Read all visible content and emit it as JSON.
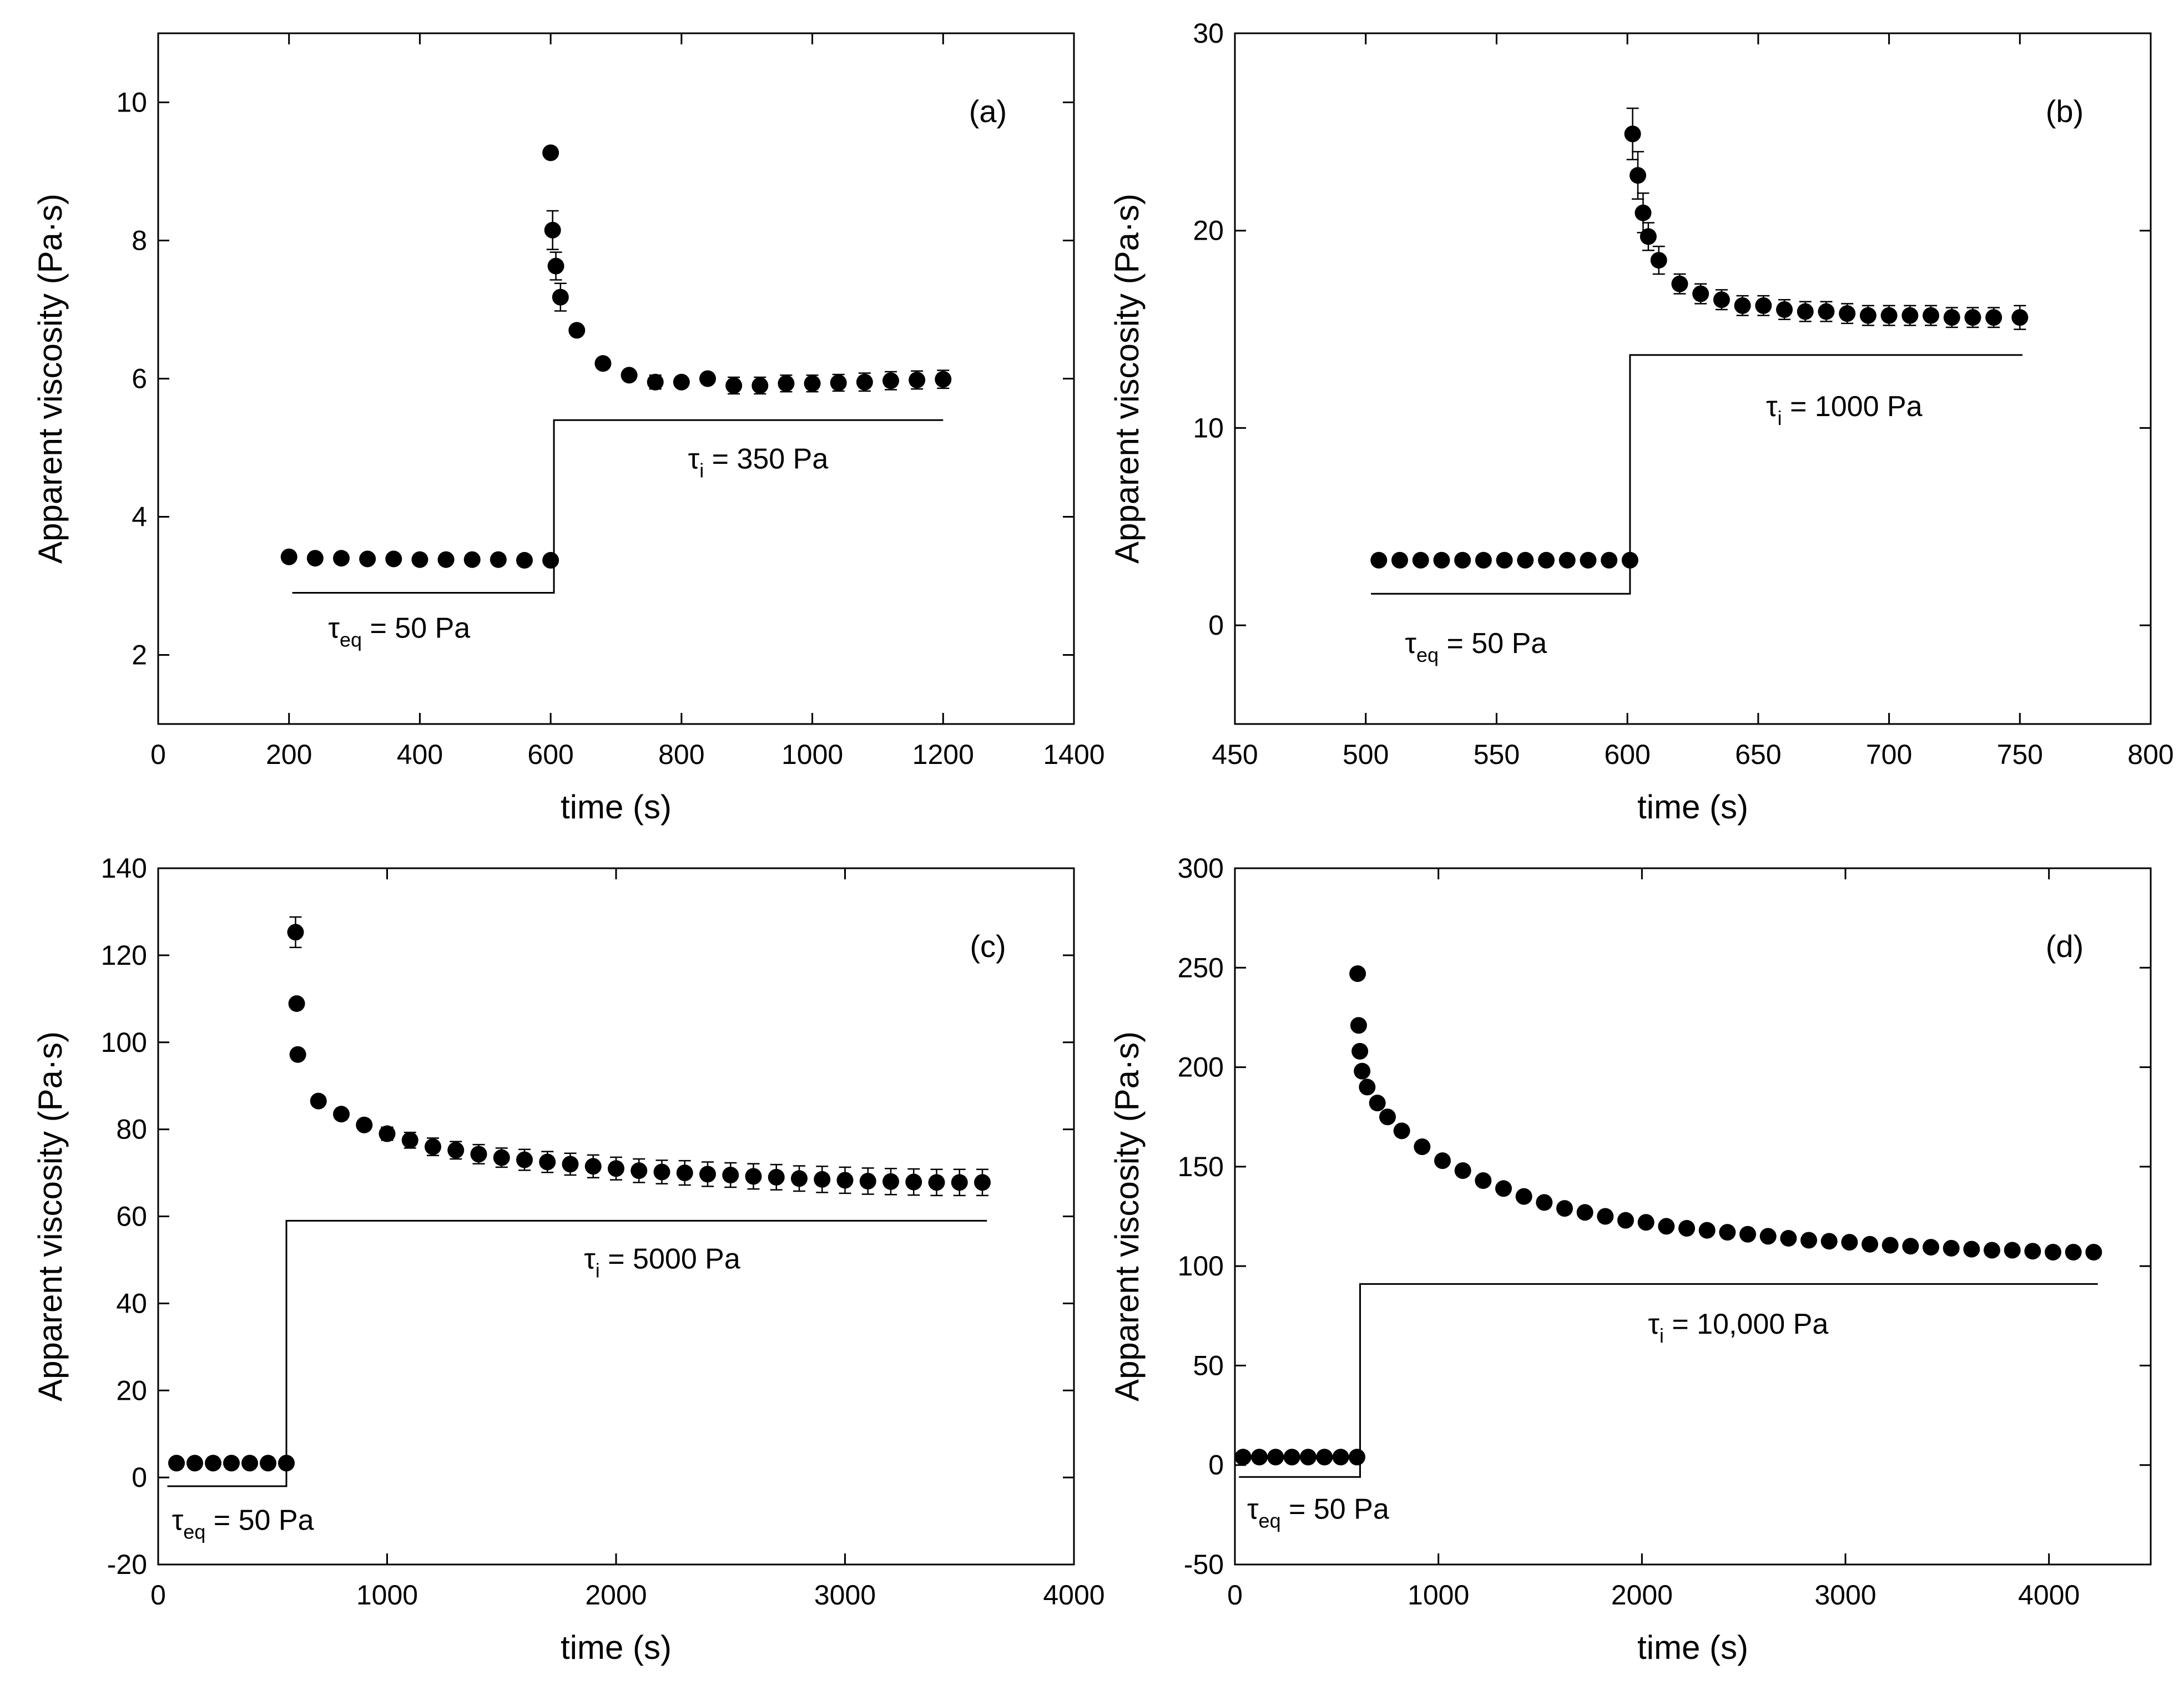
{
  "chart_data": [
    {
      "type": "scatter",
      "panel": "(a)",
      "xlabel": "time (s)",
      "ylabel": "Apparent viscosity (Pa·s)",
      "xlim": [
        0,
        1400
      ],
      "ylim": [
        1,
        11
      ],
      "xticks": [
        0,
        200,
        400,
        600,
        800,
        1000,
        1200,
        1400
      ],
      "yticks": [
        2,
        4,
        6,
        8,
        10
      ],
      "points": [
        {
          "x": 200,
          "y": 3.42,
          "err": 0
        },
        {
          "x": 240,
          "y": 3.4,
          "err": 0
        },
        {
          "x": 280,
          "y": 3.4,
          "err": 0
        },
        {
          "x": 320,
          "y": 3.39,
          "err": 0
        },
        {
          "x": 360,
          "y": 3.39,
          "err": 0
        },
        {
          "x": 400,
          "y": 3.38,
          "err": 0
        },
        {
          "x": 440,
          "y": 3.38,
          "err": 0
        },
        {
          "x": 480,
          "y": 3.38,
          "err": 0
        },
        {
          "x": 520,
          "y": 3.38,
          "err": 0
        },
        {
          "x": 560,
          "y": 3.37,
          "err": 0
        },
        {
          "x": 600,
          "y": 3.37,
          "err": 0
        },
        {
          "x": 600,
          "y": 9.27,
          "err": 0
        },
        {
          "x": 603,
          "y": 8.15,
          "err": 0.28
        },
        {
          "x": 608,
          "y": 7.63,
          "err": 0.2
        },
        {
          "x": 615,
          "y": 7.18,
          "err": 0.2
        },
        {
          "x": 640,
          "y": 6.7,
          "err": 0
        },
        {
          "x": 680,
          "y": 6.22,
          "err": 0
        },
        {
          "x": 720,
          "y": 6.05,
          "err": 0
        },
        {
          "x": 760,
          "y": 5.95,
          "err": 0.1
        },
        {
          "x": 800,
          "y": 5.95,
          "err": 0
        },
        {
          "x": 840,
          "y": 6.0,
          "err": 0
        },
        {
          "x": 880,
          "y": 5.9,
          "err": 0.12
        },
        {
          "x": 920,
          "y": 5.9,
          "err": 0.12
        },
        {
          "x": 960,
          "y": 5.93,
          "err": 0.12
        },
        {
          "x": 1000,
          "y": 5.93,
          "err": 0.12
        },
        {
          "x": 1040,
          "y": 5.94,
          "err": 0.12
        },
        {
          "x": 1080,
          "y": 5.95,
          "err": 0.13
        },
        {
          "x": 1120,
          "y": 5.97,
          "err": 0.13
        },
        {
          "x": 1160,
          "y": 5.98,
          "err": 0.13
        },
        {
          "x": 1200,
          "y": 5.99,
          "err": 0.13
        }
      ],
      "stress_profile": [
        [
          205,
          2.9
        ],
        [
          605,
          2.9
        ],
        [
          605,
          5.4
        ],
        [
          1200,
          5.4
        ]
      ],
      "annotations": {
        "low": {
          "tau": "τ",
          "sub": "eq",
          "text": " = 50 Pa",
          "x": 260,
          "y": 2.25
        },
        "high": {
          "tau": "τ",
          "sub": "i",
          "text": " = 350 Pa",
          "x": 810,
          "y": 4.7
        }
      }
    },
    {
      "type": "scatter",
      "panel": "(b)",
      "xlabel": "time (s)",
      "ylabel": "Apparent viscosity (Pa·s)",
      "xlim": [
        450,
        800
      ],
      "ylim": [
        -5,
        30
      ],
      "xticks": [
        450,
        500,
        550,
        600,
        650,
        700,
        750,
        800
      ],
      "yticks": [
        0,
        10,
        20,
        30
      ],
      "points": [
        {
          "x": 505,
          "y": 3.3,
          "err": 0
        },
        {
          "x": 513,
          "y": 3.3,
          "err": 0
        },
        {
          "x": 521,
          "y": 3.3,
          "err": 0
        },
        {
          "x": 529,
          "y": 3.3,
          "err": 0
        },
        {
          "x": 537,
          "y": 3.3,
          "err": 0
        },
        {
          "x": 545,
          "y": 3.3,
          "err": 0
        },
        {
          "x": 553,
          "y": 3.3,
          "err": 0
        },
        {
          "x": 561,
          "y": 3.3,
          "err": 0
        },
        {
          "x": 569,
          "y": 3.3,
          "err": 0
        },
        {
          "x": 577,
          "y": 3.3,
          "err": 0
        },
        {
          "x": 585,
          "y": 3.3,
          "err": 0
        },
        {
          "x": 593,
          "y": 3.3,
          "err": 0
        },
        {
          "x": 601,
          "y": 3.3,
          "err": 0
        },
        {
          "x": 602,
          "y": 24.9,
          "err": 1.3
        },
        {
          "x": 604,
          "y": 22.8,
          "err": 1.2
        },
        {
          "x": 606,
          "y": 20.9,
          "err": 1.0
        },
        {
          "x": 608,
          "y": 19.7,
          "err": 0.7
        },
        {
          "x": 612,
          "y": 18.5,
          "err": 0.7
        },
        {
          "x": 620,
          "y": 17.3,
          "err": 0.5
        },
        {
          "x": 628,
          "y": 16.8,
          "err": 0.5
        },
        {
          "x": 636,
          "y": 16.5,
          "err": 0.5
        },
        {
          "x": 644,
          "y": 16.2,
          "err": 0.5
        },
        {
          "x": 652,
          "y": 16.2,
          "err": 0.5
        },
        {
          "x": 660,
          "y": 16.0,
          "err": 0.5
        },
        {
          "x": 668,
          "y": 15.9,
          "err": 0.5
        },
        {
          "x": 676,
          "y": 15.9,
          "err": 0.5
        },
        {
          "x": 684,
          "y": 15.8,
          "err": 0.5
        },
        {
          "x": 692,
          "y": 15.7,
          "err": 0.5
        },
        {
          "x": 700,
          "y": 15.7,
          "err": 0.5
        },
        {
          "x": 708,
          "y": 15.7,
          "err": 0.5
        },
        {
          "x": 716,
          "y": 15.7,
          "err": 0.5
        },
        {
          "x": 724,
          "y": 15.6,
          "err": 0.5
        },
        {
          "x": 732,
          "y": 15.6,
          "err": 0.5
        },
        {
          "x": 740,
          "y": 15.6,
          "err": 0.5
        },
        {
          "x": 750,
          "y": 15.6,
          "err": 0.6
        }
      ],
      "stress_profile": [
        [
          502,
          1.6
        ],
        [
          601,
          1.6
        ],
        [
          601,
          13.7
        ],
        [
          751,
          13.7
        ]
      ],
      "annotations": {
        "low": {
          "tau": "τ",
          "sub": "eq",
          "text": " = 50 Pa",
          "x": 515,
          "y": -1.4
        },
        "high": {
          "tau": "τ",
          "sub": "i",
          "text": " = 1000 Pa",
          "x": 653,
          "y": 10.6
        }
      }
    },
    {
      "type": "scatter",
      "panel": "(c)",
      "xlabel": "time (s)",
      "ylabel": "Apparent viscosity (Pa·s)",
      "xlim": [
        0,
        4000
      ],
      "ylim": [
        -20,
        140
      ],
      "xticks": [
        0,
        1000,
        2000,
        3000,
        4000
      ],
      "yticks": [
        -20,
        0,
        20,
        40,
        60,
        80,
        100,
        120,
        140
      ],
      "points": [
        {
          "x": 80,
          "y": 3.3,
          "err": 0
        },
        {
          "x": 160,
          "y": 3.3,
          "err": 0
        },
        {
          "x": 240,
          "y": 3.3,
          "err": 0
        },
        {
          "x": 320,
          "y": 3.3,
          "err": 0
        },
        {
          "x": 400,
          "y": 3.3,
          "err": 0
        },
        {
          "x": 480,
          "y": 3.3,
          "err": 0
        },
        {
          "x": 560,
          "y": 3.3,
          "err": 0
        },
        {
          "x": 600,
          "y": 125.3,
          "err": 3.5
        },
        {
          "x": 605,
          "y": 108.9,
          "err": 0
        },
        {
          "x": 610,
          "y": 97.2,
          "err": 0
        },
        {
          "x": 700,
          "y": 86.5,
          "err": 0
        },
        {
          "x": 800,
          "y": 83.5,
          "err": 0
        },
        {
          "x": 900,
          "y": 81.0,
          "err": 1.0
        },
        {
          "x": 1000,
          "y": 79.0,
          "err": 1.5
        },
        {
          "x": 1100,
          "y": 77.5,
          "err": 1.8
        },
        {
          "x": 1200,
          "y": 76.0,
          "err": 2.0
        },
        {
          "x": 1300,
          "y": 75.2,
          "err": 2.0
        },
        {
          "x": 1400,
          "y": 74.3,
          "err": 2.2
        },
        {
          "x": 1500,
          "y": 73.5,
          "err": 2.2
        },
        {
          "x": 1600,
          "y": 73.0,
          "err": 2.4
        },
        {
          "x": 1700,
          "y": 72.5,
          "err": 2.4
        },
        {
          "x": 1800,
          "y": 72.0,
          "err": 2.5
        },
        {
          "x": 1900,
          "y": 71.5,
          "err": 2.6
        },
        {
          "x": 2000,
          "y": 71.0,
          "err": 2.6
        },
        {
          "x": 2100,
          "y": 70.5,
          "err": 2.7
        },
        {
          "x": 2200,
          "y": 70.2,
          "err": 2.7
        },
        {
          "x": 2300,
          "y": 70.0,
          "err": 2.8
        },
        {
          "x": 2400,
          "y": 69.7,
          "err": 2.8
        },
        {
          "x": 2500,
          "y": 69.5,
          "err": 2.8
        },
        {
          "x": 2600,
          "y": 69.2,
          "err": 2.9
        },
        {
          "x": 2700,
          "y": 69.0,
          "err": 2.9
        },
        {
          "x": 2800,
          "y": 68.7,
          "err": 2.9
        },
        {
          "x": 2900,
          "y": 68.5,
          "err": 3.0
        },
        {
          "x": 3000,
          "y": 68.3,
          "err": 3.0
        },
        {
          "x": 3100,
          "y": 68.1,
          "err": 3.0
        },
        {
          "x": 3200,
          "y": 68.0,
          "err": 3.0
        },
        {
          "x": 3300,
          "y": 67.9,
          "err": 3.0
        },
        {
          "x": 3400,
          "y": 67.8,
          "err": 3.0
        },
        {
          "x": 3500,
          "y": 67.8,
          "err": 3.0
        },
        {
          "x": 3600,
          "y": 67.8,
          "err": 3.0
        }
      ],
      "stress_profile": [
        [
          40,
          -2
        ],
        [
          560,
          -2
        ],
        [
          560,
          59
        ],
        [
          3620,
          59
        ]
      ],
      "annotations": {
        "low": {
          "tau": "τ",
          "sub": "eq",
          "text": " = 50 Pa",
          "x": 60,
          "y": -12
        },
        "high": {
          "tau": "τ",
          "sub": "i",
          "text": " = 5000 Pa",
          "x": 1860,
          "y": 48
        }
      }
    },
    {
      "type": "scatter",
      "panel": "(d)",
      "xlabel": "time (s)",
      "ylabel": "Apparent viscosity (Pa·s)",
      "xlim": [
        0,
        4500
      ],
      "ylim": [
        -50,
        300
      ],
      "xticks": [
        0,
        1000,
        2000,
        3000,
        4000
      ],
      "yticks": [
        -50,
        0,
        50,
        100,
        150,
        200,
        250,
        300
      ],
      "points": [
        {
          "x": 40,
          "y": 4,
          "err": 0
        },
        {
          "x": 120,
          "y": 4,
          "err": 0
        },
        {
          "x": 200,
          "y": 4,
          "err": 0
        },
        {
          "x": 280,
          "y": 4,
          "err": 0
        },
        {
          "x": 360,
          "y": 4,
          "err": 0
        },
        {
          "x": 440,
          "y": 4,
          "err": 0
        },
        {
          "x": 520,
          "y": 4,
          "err": 0
        },
        {
          "x": 600,
          "y": 4,
          "err": 0
        },
        {
          "x": 603,
          "y": 247,
          "err": 0
        },
        {
          "x": 608,
          "y": 221,
          "err": 0
        },
        {
          "x": 614,
          "y": 208,
          "err": 0
        },
        {
          "x": 625,
          "y": 198,
          "err": 0
        },
        {
          "x": 650,
          "y": 190,
          "err": 0
        },
        {
          "x": 700,
          "y": 182,
          "err": 0
        },
        {
          "x": 750,
          "y": 175,
          "err": 0
        },
        {
          "x": 820,
          "y": 168,
          "err": 0
        },
        {
          "x": 920,
          "y": 160,
          "err": 0
        },
        {
          "x": 1020,
          "y": 153,
          "err": 0
        },
        {
          "x": 1120,
          "y": 148,
          "err": 0
        },
        {
          "x": 1220,
          "y": 143,
          "err": 0
        },
        {
          "x": 1320,
          "y": 139,
          "err": 0
        },
        {
          "x": 1420,
          "y": 135,
          "err": 0
        },
        {
          "x": 1520,
          "y": 132,
          "err": 0
        },
        {
          "x": 1620,
          "y": 129,
          "err": 0
        },
        {
          "x": 1720,
          "y": 127,
          "err": 0
        },
        {
          "x": 1820,
          "y": 125,
          "err": 0
        },
        {
          "x": 1920,
          "y": 123,
          "err": 0
        },
        {
          "x": 2020,
          "y": 122,
          "err": 0
        },
        {
          "x": 2120,
          "y": 120,
          "err": 0
        },
        {
          "x": 2220,
          "y": 119,
          "err": 0
        },
        {
          "x": 2320,
          "y": 118,
          "err": 0
        },
        {
          "x": 2420,
          "y": 117,
          "err": 0
        },
        {
          "x": 2520,
          "y": 116,
          "err": 0
        },
        {
          "x": 2620,
          "y": 115,
          "err": 0
        },
        {
          "x": 2720,
          "y": 114,
          "err": 0
        },
        {
          "x": 2820,
          "y": 113,
          "err": 0
        },
        {
          "x": 2920,
          "y": 112.5,
          "err": 0
        },
        {
          "x": 3020,
          "y": 112,
          "err": 0
        },
        {
          "x": 3120,
          "y": 111,
          "err": 0
        },
        {
          "x": 3220,
          "y": 110.5,
          "err": 0
        },
        {
          "x": 3320,
          "y": 110,
          "err": 0
        },
        {
          "x": 3420,
          "y": 109.5,
          "err": 0
        },
        {
          "x": 3520,
          "y": 109,
          "err": 0
        },
        {
          "x": 3620,
          "y": 108.5,
          "err": 0
        },
        {
          "x": 3720,
          "y": 108,
          "err": 0
        },
        {
          "x": 3820,
          "y": 108,
          "err": 0
        },
        {
          "x": 3920,
          "y": 107.5,
          "err": 0
        },
        {
          "x": 4020,
          "y": 107,
          "err": 0
        },
        {
          "x": 4120,
          "y": 107,
          "err": 0
        },
        {
          "x": 4220,
          "y": 107,
          "err": 0
        }
      ],
      "stress_profile": [
        [
          20,
          -6
        ],
        [
          615,
          -6
        ],
        [
          615,
          91
        ],
        [
          4240,
          91
        ]
      ],
      "annotations": {
        "low": {
          "tau": "τ",
          "sub": "eq",
          "text": " = 50 Pa",
          "x": 60,
          "y": -27
        },
        "high": {
          "tau": "τ",
          "sub": "i",
          "text": " = 10,000 Pa",
          "x": 2030,
          "y": 66
        }
      }
    }
  ]
}
